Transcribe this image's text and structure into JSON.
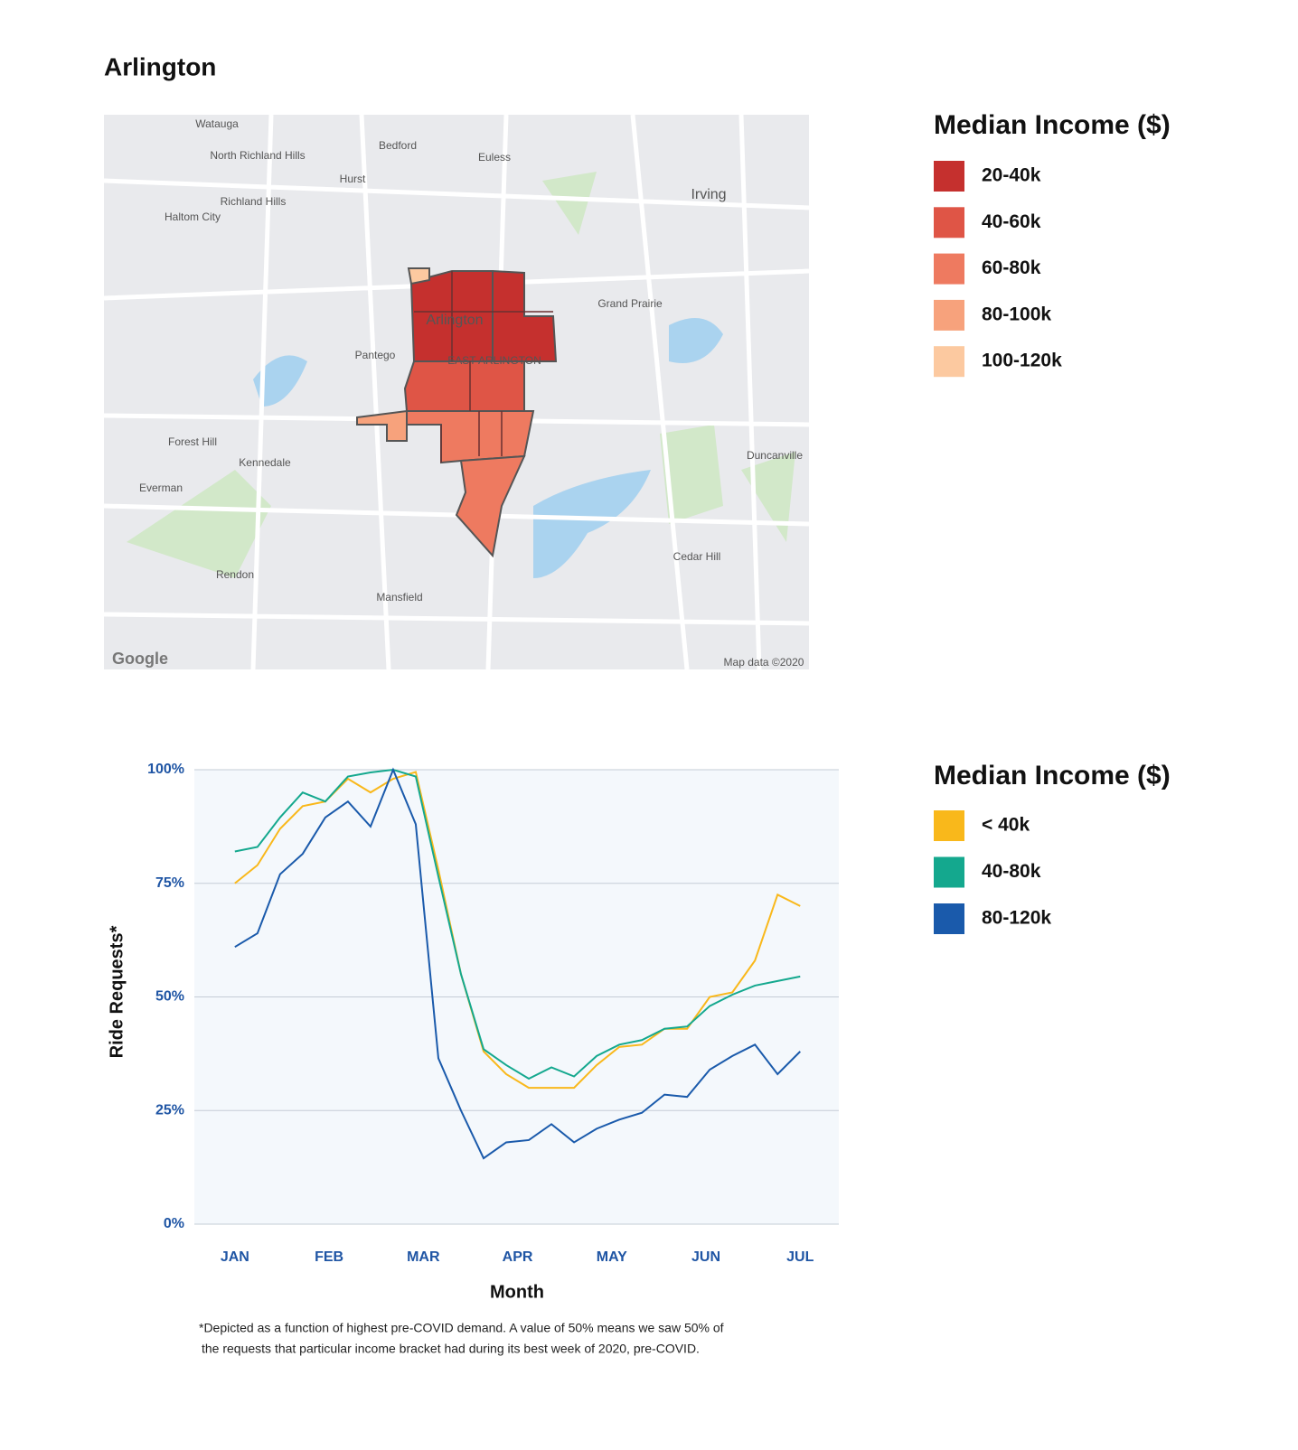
{
  "title": "Arlington",
  "map": {
    "legend_title": "Median Income ($)",
    "legend": [
      {
        "label": "20-40k",
        "color": "#c5302e"
      },
      {
        "label": "40-60k",
        "color": "#df5546"
      },
      {
        "label": "60-80k",
        "color": "#ee7a60"
      },
      {
        "label": "80-100k",
        "color": "#f7a27c"
      },
      {
        "label": "100-120k",
        "color": "#fcc9a0"
      }
    ],
    "places": [
      "Watauga",
      "North Richland Hills",
      "Bedford",
      "Euless",
      "Hurst",
      "Irving",
      "Richland Hills",
      "Haltom City",
      "Grand Prairie",
      "Arlington",
      "Pantego",
      "EAST ARLINGTON",
      "Forest Hill",
      "Kennedale",
      "Everman",
      "Duncanville",
      "Cedar Hill",
      "Rendon",
      "Mansfield",
      "Google",
      "Map data ©2020"
    ]
  },
  "chart_data": {
    "type": "line",
    "ylabel": "Ride Requests*",
    "xlabel": "Month",
    "legend_title": "Median Income ($)",
    "x": [
      0,
      0.24,
      0.48,
      0.72,
      0.96,
      1.2,
      1.44,
      1.68,
      1.92,
      2.16,
      2.4,
      2.64,
      2.88,
      3.12,
      3.36,
      3.6,
      3.84,
      4.08,
      4.32,
      4.56,
      4.8,
      5.04,
      5.28,
      5.52,
      5.76,
      6
    ],
    "xlim": [
      -0.43,
      6.41
    ],
    "xticks": [
      {
        "value": 0,
        "label": "JAN"
      },
      {
        "value": 1,
        "label": "FEB"
      },
      {
        "value": 2,
        "label": "MAR"
      },
      {
        "value": 3,
        "label": "APR"
      },
      {
        "value": 4,
        "label": "MAY"
      },
      {
        "value": 5,
        "label": "JUN"
      },
      {
        "value": 6,
        "label": "JUL"
      }
    ],
    "ylim": [
      0,
      100
    ],
    "yticks": [
      {
        "value": 0,
        "label": "0%"
      },
      {
        "value": 25,
        "label": "25%"
      },
      {
        "value": 50,
        "label": "50%"
      },
      {
        "value": 75,
        "label": "75%"
      },
      {
        "value": 100,
        "label": "100%"
      }
    ],
    "grid": true,
    "series": [
      {
        "name": "< 40k",
        "color": "#f9b81b",
        "values": [
          75,
          79,
          87,
          92,
          93,
          98,
          95,
          98,
          99.5,
          78,
          55,
          38,
          33,
          30,
          30,
          30,
          35,
          39,
          39.5,
          43,
          43,
          50,
          51,
          58,
          72.5,
          70
        ]
      },
      {
        "name": "40-80k",
        "color": "#14a88e",
        "values": [
          82,
          83,
          89.5,
          95,
          93,
          98.5,
          99.4,
          100,
          98.5,
          76.5,
          55,
          38.5,
          35,
          32,
          34.5,
          32.5,
          37,
          39.5,
          40.5,
          43,
          43.5,
          48,
          50.5,
          52.5,
          53.5,
          54.5
        ]
      },
      {
        "name": "80-120k",
        "color": "#1a5aab",
        "values": [
          61,
          64,
          77,
          81.5,
          89.5,
          93,
          87.5,
          100,
          88,
          36.5,
          25,
          14.5,
          18,
          18.5,
          22,
          18,
          21,
          23,
          24.5,
          28.5,
          28,
          34,
          37,
          39.5,
          33,
          38
        ]
      }
    ],
    "footnote": [
      "*Depicted as a function of highest pre-COVID demand. A value of 50% means we saw 50% of",
      "the requests that particular income bracket had during its best week of 2020, pre-COVID."
    ]
  }
}
